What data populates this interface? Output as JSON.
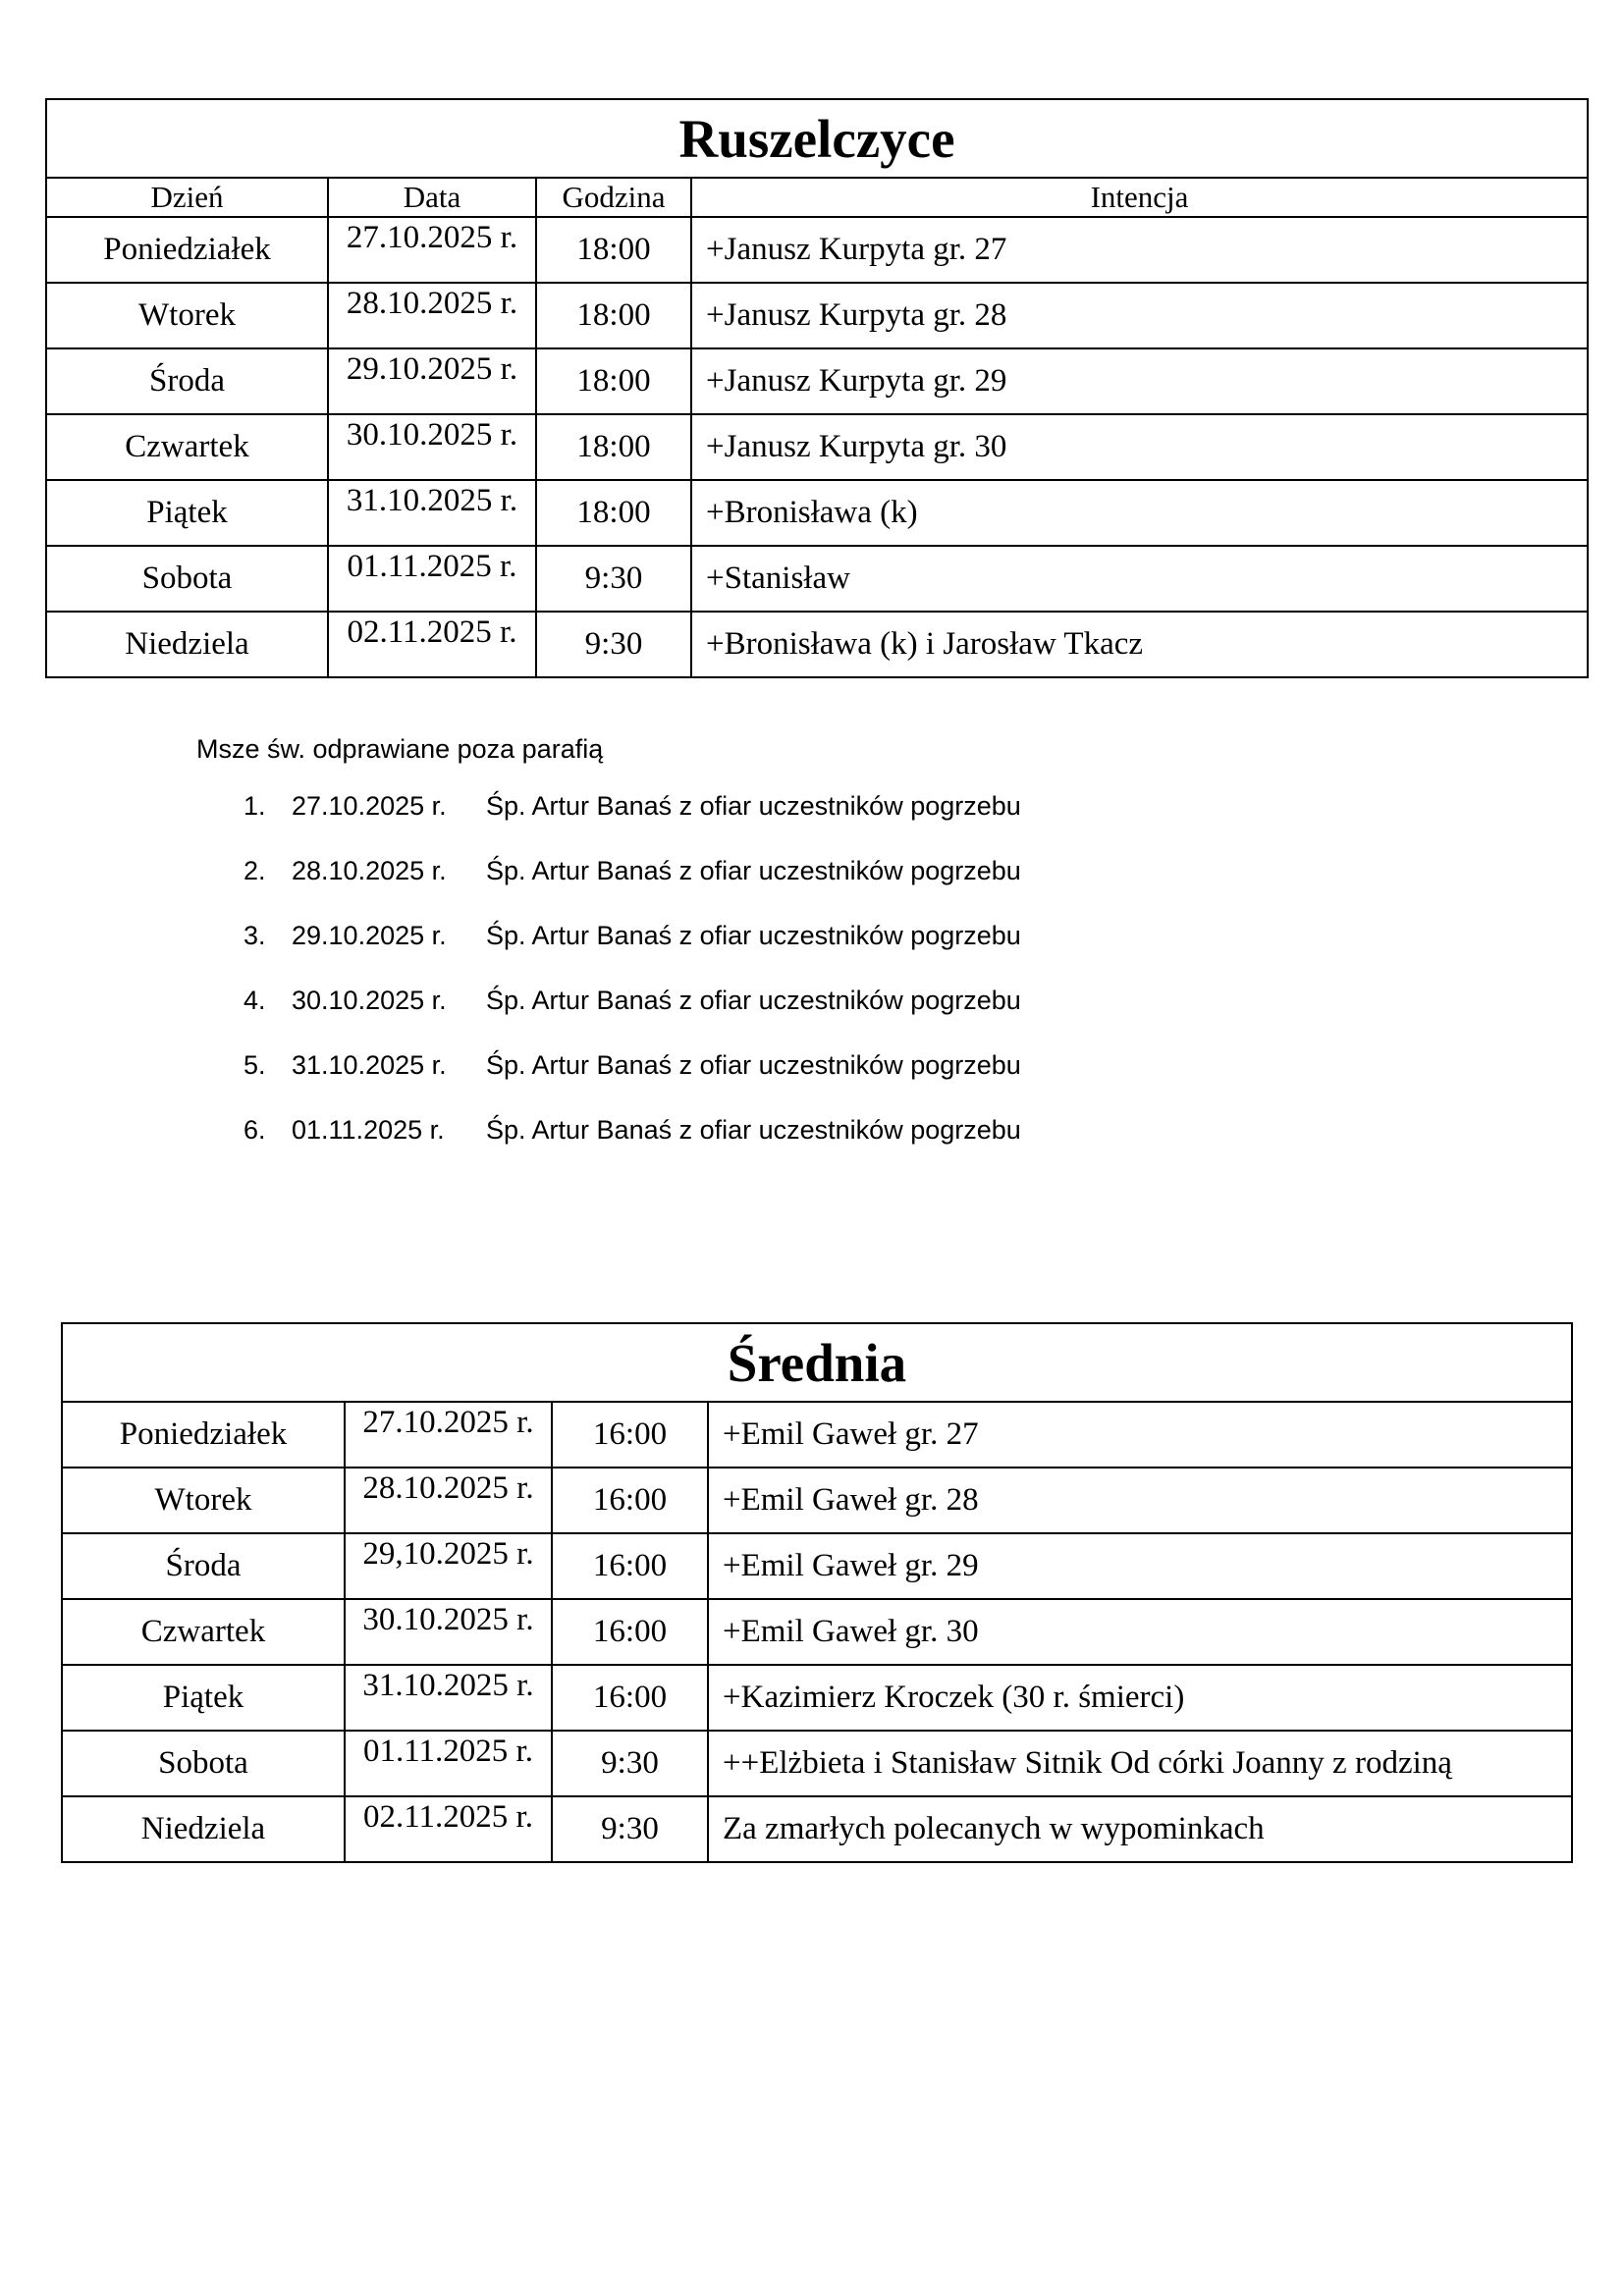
{
  "table1": {
    "title": "Ruszelczyce",
    "headers": [
      "Dzień",
      "Data",
      "Godzina",
      "Intencja"
    ],
    "rows": [
      {
        "day": "Poniedziałek",
        "date": "27.10.2025 r.",
        "time": "18:00",
        "intention": "+Janusz Kurpyta gr. 27"
      },
      {
        "day": "Wtorek",
        "date": "28.10.2025 r.",
        "time": "18:00",
        "intention": "+Janusz Kurpyta gr. 28"
      },
      {
        "day": "Środa",
        "date": "29.10.2025 r.",
        "time": "18:00",
        "intention": "+Janusz Kurpyta gr. 29"
      },
      {
        "day": "Czwartek",
        "date": "30.10.2025 r.",
        "time": "18:00",
        "intention": "+Janusz Kurpyta gr. 30"
      },
      {
        "day": "Piątek",
        "date": "31.10.2025 r.",
        "time": "18:00",
        "intention": "+Bronisława (k)"
      },
      {
        "day": "Sobota",
        "date": "01.11.2025 r.",
        "time": "9:30",
        "intention": "+Stanisław"
      },
      {
        "day": "Niedziela",
        "date": "02.11.2025 r.",
        "time": "9:30",
        "intention": "+Bronisława (k) i Jarosław Tkacz"
      }
    ]
  },
  "outside": {
    "heading": "Msze św. odprawiane poza parafią",
    "items": [
      {
        "num": "1.",
        "date": "27.10.2025 r.",
        "text": "Śp. Artur Banaś z ofiar uczestników pogrzebu"
      },
      {
        "num": "2.",
        "date": "28.10.2025 r.",
        "text": "Śp. Artur Banaś z ofiar uczestników pogrzebu"
      },
      {
        "num": "3.",
        "date": "29.10.2025 r.",
        "text": "Śp. Artur Banaś z ofiar uczestników pogrzebu"
      },
      {
        "num": "4.",
        "date": "30.10.2025 r.",
        "text": "Śp. Artur Banaś z ofiar uczestników pogrzebu"
      },
      {
        "num": "5.",
        "date": "31.10.2025 r.",
        "text": "Śp. Artur Banaś z ofiar uczestników pogrzebu"
      },
      {
        "num": "6.",
        "date": "01.11.2025 r.",
        "text": "Śp. Artur Banaś z ofiar uczestników pogrzebu"
      }
    ]
  },
  "table2": {
    "title": "Średnia",
    "rows": [
      {
        "day": "Poniedziałek",
        "date": "27.10.2025 r.",
        "time": "16:00",
        "intention": "+Emil Gaweł gr. 27"
      },
      {
        "day": "Wtorek",
        "date": "28.10.2025 r.",
        "time": "16:00",
        "intention": "+Emil Gaweł gr. 28"
      },
      {
        "day": "Środa",
        "date": "29,10.2025 r.",
        "time": "16:00",
        "intention": "+Emil Gaweł gr. 29"
      },
      {
        "day": "Czwartek",
        "date": "30.10.2025 r.",
        "time": "16:00",
        "intention": "+Emil Gaweł gr. 30"
      },
      {
        "day": "Piątek",
        "date": "31.10.2025 r.",
        "time": "16:00",
        "intention": "+Kazimierz Kroczek  (30 r. śmierci)"
      },
      {
        "day": "Sobota",
        "date": "01.11.2025 r.",
        "time": "9:30",
        "intention": "++Elżbieta i Stanisław Sitnik Od córki Joanny z rodziną"
      },
      {
        "day": "Niedziela",
        "date": "02.11.2025 r.",
        "time": "9:30",
        "intention": "Za zmarłych polecanych w wypominkach"
      }
    ]
  }
}
